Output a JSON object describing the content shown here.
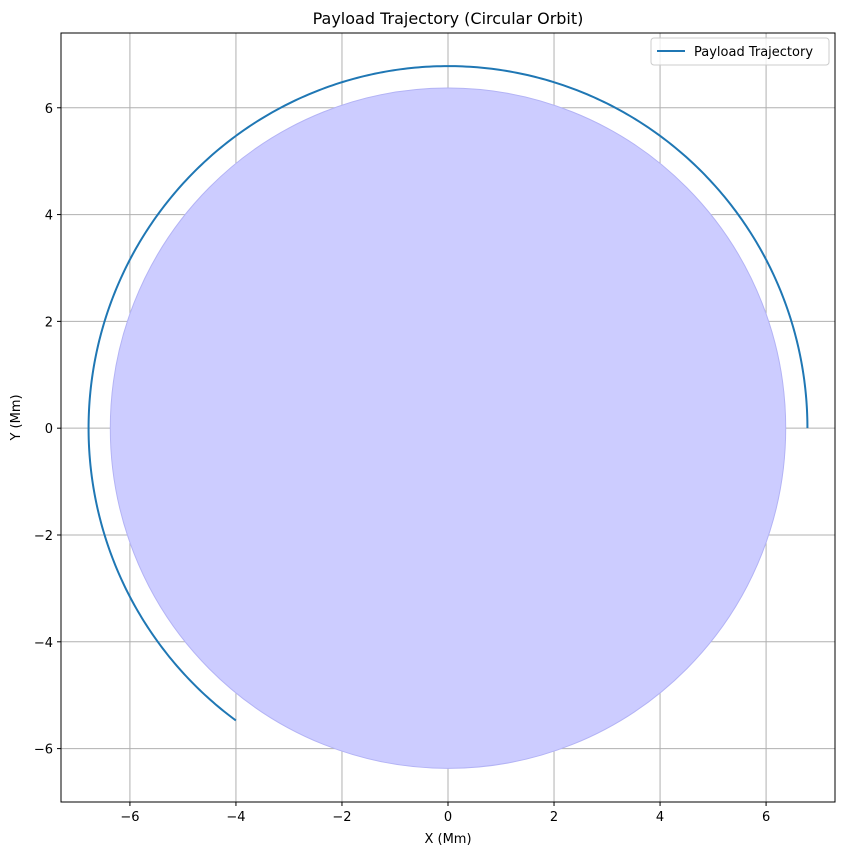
{
  "chart_data": {
    "type": "line",
    "title": "Payload Trajectory (Circular Orbit)",
    "xlabel": "X (Mm)",
    "ylabel": "Y (Mm)",
    "xlim": [
      -7.3,
      7.3
    ],
    "ylim": [
      -7.0,
      7.4
    ],
    "xticks": [
      -6,
      -4,
      -2,
      0,
      2,
      4,
      6
    ],
    "yticks": [
      -6,
      -4,
      -2,
      0,
      2,
      4,
      6
    ],
    "xtick_labels": [
      "−6",
      "−4",
      "−2",
      "0",
      "2",
      "4",
      "6"
    ],
    "ytick_labels": [
      "−6",
      "−4",
      "−2",
      "0",
      "2",
      "4",
      "6"
    ],
    "grid": true,
    "legend_position": "top-right",
    "series": [
      {
        "name": "Payload Trajectory",
        "color": "#1f77b4",
        "shape": "circular arc",
        "center": [
          0,
          0
        ],
        "radius": 6.78,
        "start_point": [
          6.78,
          0
        ],
        "end_point": [
          -4.0,
          -5.47
        ],
        "direction": "counter-clockwise"
      }
    ],
    "body": {
      "shape": "filled circle",
      "center": [
        0,
        0
      ],
      "radius": 6.37,
      "color": "#ccccff",
      "edge_color": "#b3b3f5"
    }
  }
}
